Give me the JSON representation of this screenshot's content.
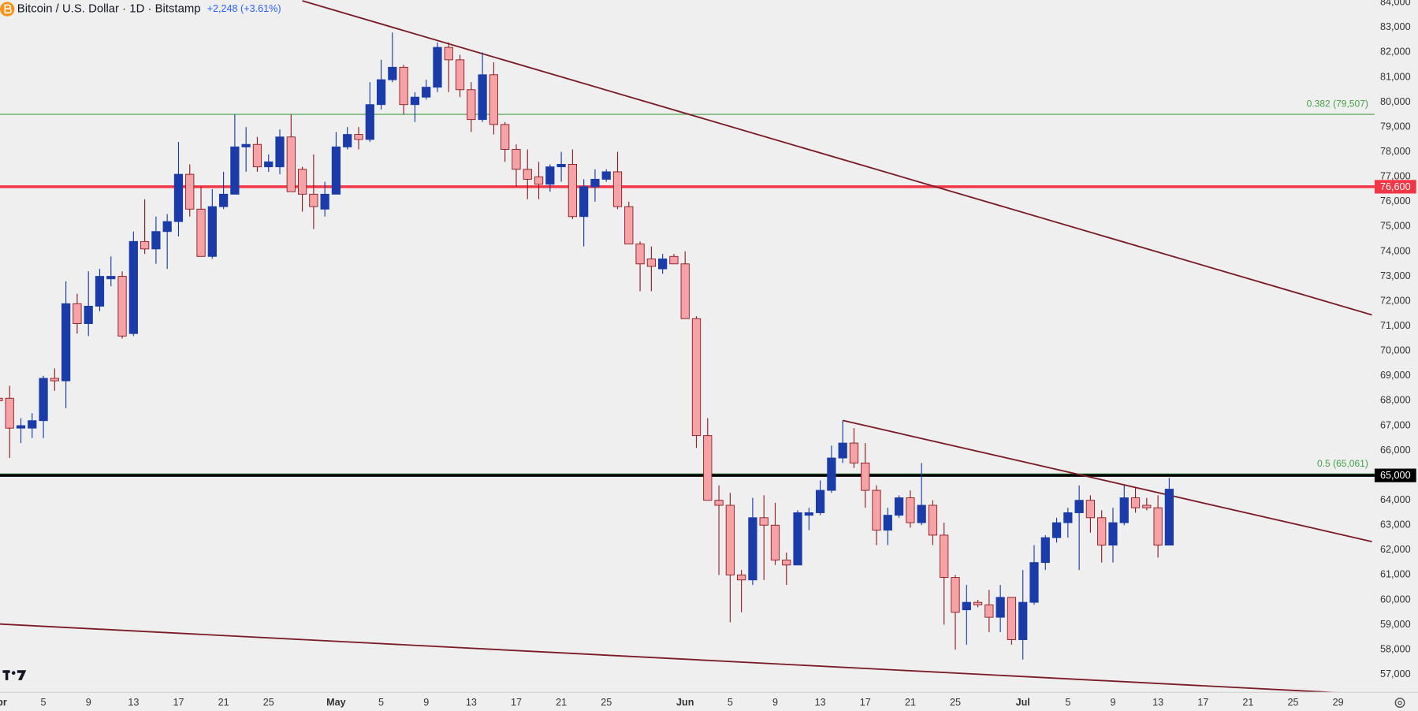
{
  "chart_data": {
    "type": "candlestick",
    "title": "Bitcoin / U.S. Dollar · 1D · Bitstamp",
    "change": "+2,248 (+3.61%)",
    "x": [
      "Apr 1",
      "Apr 2",
      "Apr 3",
      "Apr 4",
      "Apr 5",
      "Apr 6",
      "Apr 7",
      "Apr 8",
      "Apr 9",
      "Apr 10",
      "Apr 11",
      "Apr 12",
      "Apr 13",
      "Apr 14",
      "Apr 15",
      "Apr 16",
      "Apr 17",
      "Apr 18",
      "Apr 19",
      "Apr 20",
      "Apr 21",
      "Apr 22",
      "Apr 23",
      "Apr 24",
      "Apr 25",
      "Apr 26",
      "Apr 27",
      "Apr 28",
      "Apr 29",
      "Apr 30",
      "May 1",
      "May 2",
      "May 3",
      "May 4",
      "May 5",
      "May 6",
      "May 7",
      "May 8",
      "May 9",
      "May 10",
      "May 11",
      "May 12",
      "May 13",
      "May 14",
      "May 15",
      "May 16",
      "May 17",
      "May 18",
      "May 19",
      "May 20",
      "May 21",
      "May 22",
      "May 23",
      "May 24",
      "May 25",
      "May 26",
      "May 27",
      "May 28",
      "May 29",
      "May 30",
      "May 31",
      "Jun 1",
      "Jun 2",
      "Jun 3",
      "Jun 4",
      "Jun 5",
      "Jun 6",
      "Jun 7",
      "Jun 8",
      "Jun 9",
      "Jun 10",
      "Jun 11",
      "Jun 12",
      "Jun 13",
      "Jun 14",
      "Jun 15",
      "Jun 16",
      "Jun 17",
      "Jun 18",
      "Jun 19",
      "Jun 20",
      "Jun 21",
      "Jun 22",
      "Jun 23",
      "Jun 24",
      "Jun 25",
      "Jun 26",
      "Jun 27",
      "Jun 28",
      "Jun 29",
      "Jun 30",
      "Jul 1",
      "Jul 2",
      "Jul 3",
      "Jul 4",
      "Jul 5",
      "Jul 6",
      "Jul 7",
      "Jul 8",
      "Jul 9",
      "Jul 10",
      "Jul 11",
      "Jul 12",
      "Jul 13",
      "Jul 14"
    ],
    "open": [
      68100,
      68100,
      66900,
      66900,
      67200,
      68900,
      68800,
      71900,
      71100,
      71800,
      72900,
      73000,
      70700,
      74400,
      74100,
      74800,
      75200,
      77100,
      75700,
      73800,
      75800,
      76300,
      78200,
      78300,
      77400,
      77400,
      78600,
      77300,
      76300,
      75700,
      76300,
      78200,
      78700,
      78500,
      79900,
      80900,
      81400,
      79900,
      80200,
      80600,
      82200,
      81700,
      80500,
      79300,
      81100,
      79100,
      78100,
      77300,
      77000,
      76700,
      77400,
      77500,
      75400,
      76600,
      76900,
      77200,
      75800,
      74300,
      73700,
      73300,
      73800,
      73500,
      71300,
      66600,
      64000,
      63800,
      61000,
      60800,
      63300,
      63000,
      61600,
      61400,
      63400,
      63500,
      64400,
      65700,
      66300,
      65500,
      64400,
      62800,
      63400,
      64100,
      63100,
      63800,
      62600,
      60900,
      59600,
      59900,
      59800,
      59300,
      60100,
      58400,
      59900,
      61500,
      62500,
      63100,
      63500,
      64000,
      63300,
      62200,
      63100,
      64100,
      63800,
      63700,
      62200
    ],
    "high": [
      68300,
      68600,
      67300,
      67500,
      69000,
      69300,
      72800,
      72300,
      73200,
      73300,
      73800,
      73200,
      74800,
      76100,
      75400,
      75500,
      78400,
      77500,
      76600,
      76500,
      77200,
      79500,
      79000,
      78600,
      77900,
      78900,
      79500,
      77400,
      77900,
      76800,
      78800,
      79000,
      79000,
      80800,
      81700,
      82800,
      81500,
      80400,
      80900,
      82400,
      82400,
      81900,
      80800,
      82000,
      81600,
      79200,
      78300,
      78100,
      77600,
      77500,
      78000,
      78100,
      76900,
      77300,
      77300,
      78000,
      76000,
      74400,
      74200,
      73900,
      73900,
      74000,
      71400,
      67300,
      64600,
      64300,
      61200,
      64100,
      64200,
      63900,
      61900,
      63600,
      63700,
      64800,
      66200,
      67200,
      66900,
      66300,
      64600,
      63700,
      64200,
      64400,
      65500,
      64000,
      63100,
      61000,
      60600,
      60000,
      60400,
      60600,
      60100,
      61200,
      62200,
      62600,
      63300,
      63700,
      64600,
      64200,
      63600,
      63700,
      64600,
      64500,
      64100,
      64200,
      64900
    ],
    "low": [
      67900,
      65700,
      66300,
      66500,
      66500,
      68400,
      67700,
      70700,
      70600,
      71600,
      72600,
      70500,
      70600,
      73900,
      73500,
      73300,
      74600,
      75400,
      73800,
      73700,
      75700,
      76300,
      77200,
      77200,
      77200,
      77100,
      76400,
      75600,
      74900,
      75400,
      76300,
      78100,
      78100,
      78400,
      79700,
      80800,
      79500,
      79200,
      80100,
      80400,
      80400,
      80200,
      78800,
      79200,
      78700,
      77600,
      76600,
      76100,
      76100,
      76400,
      76800,
      75300,
      74200,
      76000,
      76800,
      75700,
      74300,
      72400,
      72400,
      73100,
      73500,
      71300,
      66100,
      64000,
      61000,
      59100,
      59500,
      60600,
      60800,
      61400,
      60600,
      61400,
      62800,
      63400,
      64300,
      65500,
      65300,
      63700,
      62200,
      62200,
      63300,
      62900,
      63000,
      62200,
      59000,
      58000,
      58200,
      59700,
      58700,
      58700,
      58200,
      57600,
      59800,
      61200,
      62300,
      62500,
      61200,
      62700,
      61500,
      61500,
      63000,
      63500,
      63600,
      61700,
      62200
    ],
    "close": [
      68000,
      66900,
      67000,
      67200,
      68900,
      68800,
      71900,
      71100,
      71800,
      73000,
      73000,
      70600,
      74400,
      74100,
      74800,
      75200,
      77100,
      75700,
      73800,
      75800,
      76300,
      78200,
      78300,
      77400,
      77600,
      78600,
      76400,
      76300,
      75800,
      76300,
      78200,
      78700,
      78500,
      79900,
      80900,
      81400,
      79900,
      80200,
      80600,
      82200,
      81700,
      80500,
      79300,
      81100,
      79100,
      78100,
      77300,
      76900,
      76700,
      77400,
      77500,
      75400,
      76600,
      76900,
      77200,
      75800,
      74300,
      73500,
      73400,
      73700,
      73500,
      71300,
      66600,
      64000,
      63800,
      61000,
      60800,
      63300,
      63000,
      61600,
      61400,
      63500,
      63500,
      64400,
      65700,
      66300,
      65500,
      64400,
      62800,
      63400,
      64100,
      63100,
      63800,
      62600,
      60900,
      59500,
      59900,
      59800,
      59300,
      60100,
      58400,
      59900,
      61500,
      62500,
      63100,
      63500,
      64000,
      63300,
      62200,
      63100,
      64100,
      63700,
      63700,
      62200,
      64448
    ],
    "up_color": "#1b3ca8",
    "down_color": "#f5a3a6",
    "down_edge_color": "#8e1d24",
    "xlim": [
      "Apr 1",
      "Aug 1"
    ],
    "xticks": [
      {
        "value": "Apr 1",
        "label": "Apr"
      },
      {
        "value": "Apr 5",
        "label": "5"
      },
      {
        "value": "Apr 9",
        "label": "9"
      },
      {
        "value": "Apr 13",
        "label": "13"
      },
      {
        "value": "Apr 17",
        "label": "17"
      },
      {
        "value": "Apr 21",
        "label": "21"
      },
      {
        "value": "Apr 25",
        "label": "25"
      },
      {
        "value": "May 1",
        "label": "May"
      },
      {
        "value": "May 5",
        "label": "5"
      },
      {
        "value": "May 9",
        "label": "9"
      },
      {
        "value": "May 13",
        "label": "13"
      },
      {
        "value": "May 17",
        "label": "17"
      },
      {
        "value": "May 21",
        "label": "21"
      },
      {
        "value": "May 25",
        "label": "25"
      },
      {
        "value": "Jun 1",
        "label": "Jun"
      },
      {
        "value": "Jun 5",
        "label": "5"
      },
      {
        "value": "Jun 9",
        "label": "9"
      },
      {
        "value": "Jun 13",
        "label": "13"
      },
      {
        "value": "Jun 17",
        "label": "17"
      },
      {
        "value": "Jun 21",
        "label": "21"
      },
      {
        "value": "Jun 25",
        "label": "25"
      },
      {
        "value": "Jul 1",
        "label": "Jul"
      },
      {
        "value": "Jul 5",
        "label": "5"
      },
      {
        "value": "Jul 9",
        "label": "9"
      },
      {
        "value": "Jul 13",
        "label": "13"
      },
      {
        "value": "Jul 17",
        "label": "17"
      },
      {
        "value": "Jul 21",
        "label": "21"
      },
      {
        "value": "Jul 25",
        "label": "25"
      },
      {
        "value": "Jul 29",
        "label": "29"
      }
    ],
    "ylim": [
      56300,
      84100
    ],
    "yticks": [
      {
        "value": 57000,
        "label": "57,000"
      },
      {
        "value": 58000,
        "label": "58,000"
      },
      {
        "value": 59000,
        "label": "59,000"
      },
      {
        "value": 60000,
        "label": "60,000"
      },
      {
        "value": 61000,
        "label": "61,000"
      },
      {
        "value": 62000,
        "label": "62,000"
      },
      {
        "value": 63000,
        "label": "63,000"
      },
      {
        "value": 64000,
        "label": "64,000"
      },
      {
        "value": 65000,
        "label": "65,000"
      },
      {
        "value": 66000,
        "label": "66,000"
      },
      {
        "value": 67000,
        "label": "67,000"
      },
      {
        "value": 68000,
        "label": "68,000"
      },
      {
        "value": 69000,
        "label": "69,000"
      },
      {
        "value": 70000,
        "label": "70,000"
      },
      {
        "value": 71000,
        "label": "71,000"
      },
      {
        "value": 72000,
        "label": "72,000"
      },
      {
        "value": 73000,
        "label": "73,000"
      },
      {
        "value": 74000,
        "label": "74,000"
      },
      {
        "value": 75000,
        "label": "75,000"
      },
      {
        "value": 76000,
        "label": "76,000"
      },
      {
        "value": 77000,
        "label": "77,000"
      },
      {
        "value": 78000,
        "label": "78,000"
      },
      {
        "value": 79000,
        "label": "79,000"
      },
      {
        "value": 80000,
        "label": "80,000"
      },
      {
        "value": 81000,
        "label": "81,000"
      },
      {
        "value": 82000,
        "label": "82,000"
      },
      {
        "value": 83000,
        "label": "83,000"
      },
      {
        "value": 84000,
        "label": "84,000"
      }
    ],
    "grid": false,
    "fib_levels": [
      {
        "value": 79507,
        "label": "0.382 (79,507)",
        "color": "#43a047"
      },
      {
        "value": 65061,
        "label": "0.5 (65,061)",
        "color": "#43a047"
      }
    ],
    "hlines": [
      {
        "value": 76600,
        "label": "76,600",
        "color": "#f23645"
      },
      {
        "value": 65000,
        "label": "65,000",
        "color": "#000000"
      }
    ],
    "trendlines": [
      {
        "x": [
          "Apr 28",
          "Aug 1"
        ],
        "y": [
          84070,
          71450
        ],
        "color": "#7a1c26"
      },
      {
        "x": [
          "Jun 15",
          "Aug 1"
        ],
        "y": [
          67210,
          62340
        ],
        "color": "#7a1c26"
      },
      {
        "x": [
          "Apr 1",
          "Aug 1"
        ],
        "y": [
          59030,
          56200
        ],
        "color": "#7a1c26"
      }
    ]
  }
}
